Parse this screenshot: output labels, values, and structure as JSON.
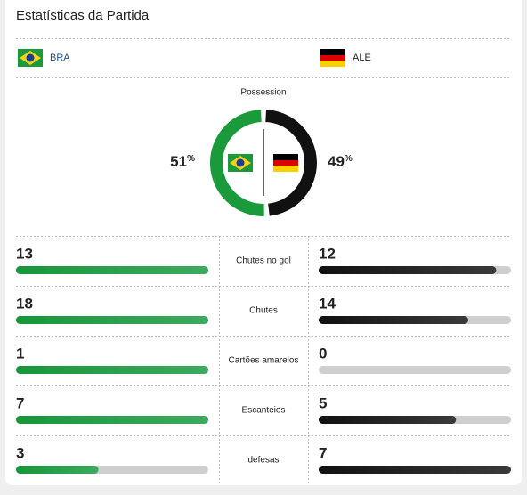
{
  "header": {
    "title": "Estatísticas da Partida"
  },
  "teams": [
    {
      "name": "BRA",
      "color": "#1a9a3a"
    },
    {
      "name": "ALE",
      "color": "#111111"
    }
  ],
  "possession": {
    "label": "Possession",
    "values": [
      51,
      49
    ],
    "unit": "%"
  },
  "stats": [
    {
      "label": "Chutes no gol",
      "values": [
        13,
        12
      ]
    },
    {
      "label": "Chutes",
      "values": [
        18,
        14
      ]
    },
    {
      "label": "Cartões amarelos",
      "values": [
        1,
        0
      ]
    },
    {
      "label": "Escanteios",
      "values": [
        7,
        5
      ]
    },
    {
      "label": "defesas",
      "values": [
        3,
        7
      ]
    }
  ]
}
